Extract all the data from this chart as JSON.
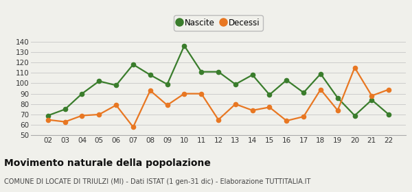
{
  "years": [
    "02",
    "03",
    "04",
    "05",
    "06",
    "07",
    "08",
    "09",
    "10",
    "11",
    "12",
    "13",
    "14",
    "15",
    "16",
    "17",
    "18",
    "19",
    "20",
    "21",
    "22"
  ],
  "nascite": [
    69,
    75,
    90,
    102,
    98,
    118,
    108,
    99,
    136,
    111,
    111,
    99,
    108,
    89,
    103,
    91,
    109,
    86,
    69,
    84,
    70
  ],
  "decessi": [
    65,
    63,
    69,
    70,
    79,
    58,
    93,
    79,
    90,
    90,
    65,
    80,
    74,
    77,
    64,
    68,
    94,
    74,
    115,
    88,
    94
  ],
  "nascite_color": "#3a7d2c",
  "decessi_color": "#e87722",
  "bg_color": "#f0f0eb",
  "grid_color": "#cccccc",
  "ylim": [
    50,
    143
  ],
  "yticks": [
    50,
    60,
    70,
    80,
    90,
    100,
    110,
    120,
    130,
    140
  ],
  "title": "Movimento naturale della popolazione",
  "subtitle": "COMUNE DI LOCATE DI TRIULZI (MI) - Dati ISTAT (1 gen-31 dic) - Elaborazione TUTTITALIA.IT",
  "legend_nascite": "Nascite",
  "legend_decessi": "Decessi",
  "title_fontsize": 10,
  "subtitle_fontsize": 7,
  "tick_fontsize": 7.5,
  "legend_fontsize": 8.5,
  "line_width": 1.6,
  "marker_size": 4.5
}
